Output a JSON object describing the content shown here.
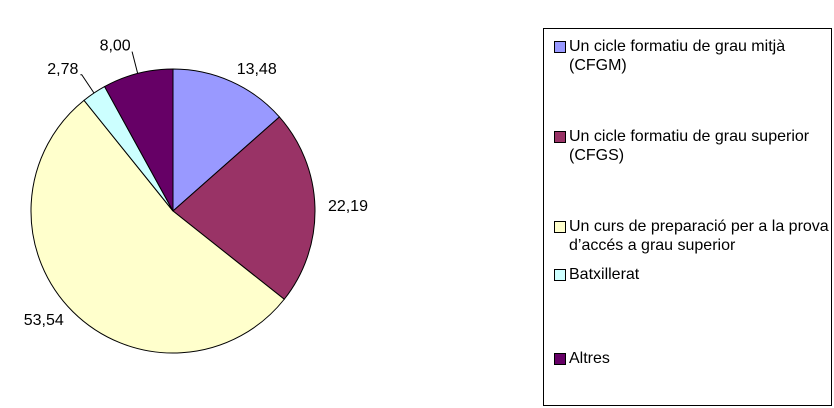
{
  "chart_data": {
    "type": "pie",
    "series": [
      {
        "name": "Un cicle formatiu de grau mitjà (CFGM)",
        "color": "#9999ff",
        "values": [
          13.48
        ],
        "value_labels": [
          "13,48"
        ]
      },
      {
        "name": "Un cicle formatiu de grau superior (CFGS)",
        "color": "#993366",
        "values": [
          22.19
        ],
        "value_labels": [
          "22,19"
        ]
      },
      {
        "name": "Un curs de preparació per a la prova d’accés a grau superior",
        "color": "#ffffcc",
        "values": [
          53.54
        ],
        "value_labels": [
          "53,54"
        ]
      },
      {
        "name": "Batxillerat",
        "color": "#ccffff",
        "values": [
          2.78
        ],
        "value_labels": [
          "2,78"
        ]
      },
      {
        "name": "Altres",
        "color": "#660066",
        "values": [
          8.0
        ],
        "value_labels": [
          "8,00"
        ]
      }
    ]
  }
}
